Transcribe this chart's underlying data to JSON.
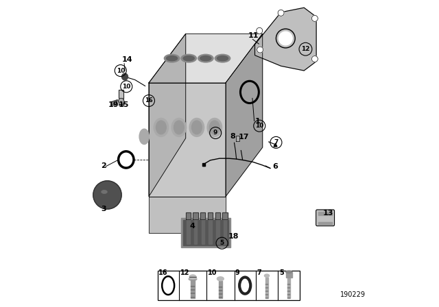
{
  "bg_color": "#ffffff",
  "diagram_number": "190229",
  "engine_color": "#c8c8c8",
  "engine_dark": "#a0a0a0",
  "engine_light": "#e0e0e0"
}
